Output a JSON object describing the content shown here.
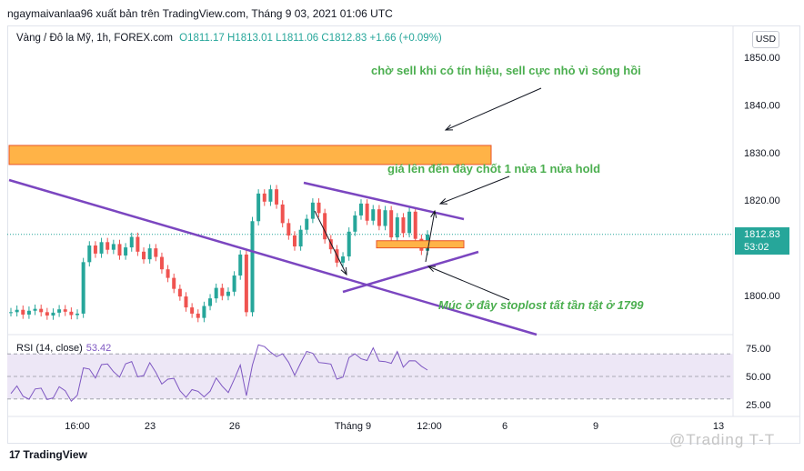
{
  "header": {
    "publish_line": "ngaymaivanlaa96 xuất bản trên TradingView.com, Tháng 9 03, 2021 01:06 UTC"
  },
  "symbol": {
    "name": "Vàng / Đô la Mỹ, 1h, FOREX.com",
    "open": "O1811.17",
    "high": "H1813.01",
    "low": "L1811.06",
    "close": "C1812.83",
    "change": "+1.66 (+0.09%)"
  },
  "currency_button": "USD",
  "last_price": {
    "value": "1812.83",
    "countdown": "53:02"
  },
  "rsi": {
    "label": "RSI (14, close)",
    "value": "53.42"
  },
  "footer": {
    "brand": "TradingView",
    "watermark": "@Trading T-T"
  },
  "colors": {
    "up": "#26a69a",
    "down": "#ef5350",
    "trendline": "#7b46c0",
    "zone_fill": "#ffb347",
    "zone_border": "#e8542a",
    "note_text": "#4caf50",
    "rsi_line": "#7e57c2",
    "rsi_band": "#ede7f6"
  },
  "chart_data": {
    "type": "candlestick",
    "price_axis": {
      "ticks": [
        1850,
        1840,
        1830,
        1820,
        1800
      ],
      "range": [
        1792,
        1855
      ]
    },
    "rsi_axis": {
      "ticks": [
        75,
        50,
        25
      ],
      "range": [
        15,
        85
      ],
      "band": [
        30,
        70
      ]
    },
    "time_axis_labels": [
      "16:00",
      "23",
      "26",
      "Tháng 9",
      "12:00",
      "6",
      "9",
      "13"
    ],
    "candles_close_path": [
      1796.5,
      1797,
      1796,
      1796.8,
      1797.2,
      1796.5,
      1795.8,
      1796.4,
      1797.1,
      1796.6,
      1795.9,
      1796.2,
      1807,
      1810.5,
      1808.8,
      1811.2,
      1809.6,
      1810.8,
      1808.4,
      1810.1,
      1812.3,
      1809.2,
      1807.6,
      1809.9,
      1808.1,
      1805.5,
      1803.7,
      1801.4,
      1799.8,
      1797.5,
      1796.2,
      1795.3,
      1797.8,
      1799.4,
      1801.6,
      1799.9,
      1800.8,
      1804.2,
      1808.6,
      1796.5,
      1815.6,
      1821.4,
      1819.7,
      1822.3,
      1819.1,
      1815.2,
      1812.6,
      1810.3,
      1813.8,
      1816.1,
      1819.5,
      1817.3,
      1811.8,
      1809.7,
      1806.9,
      1808.2,
      1813.4,
      1816.8,
      1819.3,
      1815.7,
      1818.1,
      1814.6,
      1817.9,
      1812.2,
      1816.4,
      1813.1,
      1817.6,
      1811.9,
      1809.4,
      1812.8
    ],
    "zones": [
      {
        "name": "sell zone",
        "price_from": 1827.5,
        "price_to": 1831.5
      },
      {
        "name": "entry zone",
        "price_from": 1810.0,
        "price_to": 1811.5
      }
    ],
    "annotations": [
      "chờ sell khi có tín hiệu, sell cực nhỏ vì sóng hồi",
      "giá lên đến đây chốt 1 nửa 1 nửa hold",
      "Múc ở đây stoplost tất tần tật ở 1799"
    ]
  }
}
